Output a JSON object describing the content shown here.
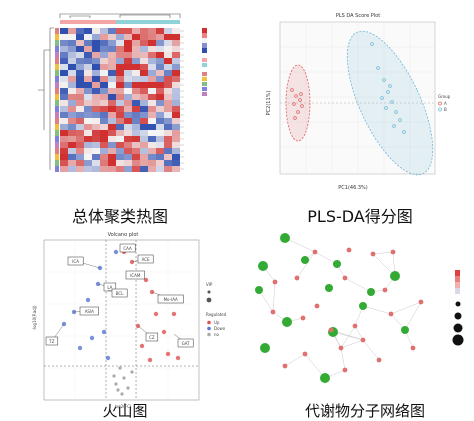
{
  "captions": {
    "heatmap": "总体聚类热图",
    "plsda": "PLS-DA得分图",
    "volcano": "火山图",
    "network": "代谢物分子网络图"
  },
  "plsda": {
    "title": "PLS DA Score Plot",
    "xlabel": "PC1(46.3%)",
    "ylabel": "PC2(11%)",
    "legend_title": "Group",
    "legend_items": [
      "A",
      "B"
    ],
    "colors": {
      "A": "#e06060",
      "B": "#6ab8d8"
    }
  },
  "volcano": {
    "title": "Volcano plot",
    "xlabel": "log2(FC)",
    "ylabel": "-log10(P.adj)",
    "labels": [
      "CAA",
      "ICA",
      "ACE",
      "ICAM",
      "LA",
      "BCL",
      "ASIA",
      "Mo-IAA",
      "TZ",
      "CZ",
      "GAT"
    ],
    "legend_vip_title": "VIP",
    "legend_reg_title": "Regulated",
    "legend_reg_items": [
      "Up",
      "Down",
      "no"
    ],
    "colors": {
      "up": "#e05050",
      "down": "#5577cc",
      "no": "#aaaaaa"
    }
  },
  "network": {
    "colors": {
      "pathway": "#33aa33",
      "metabolite": "#e07070",
      "edge": "#bbbbbb"
    }
  },
  "heatmap": {
    "colors": {
      "high": "#d03030",
      "mid": "#f5f5f5",
      "low": "#3050b0"
    }
  }
}
